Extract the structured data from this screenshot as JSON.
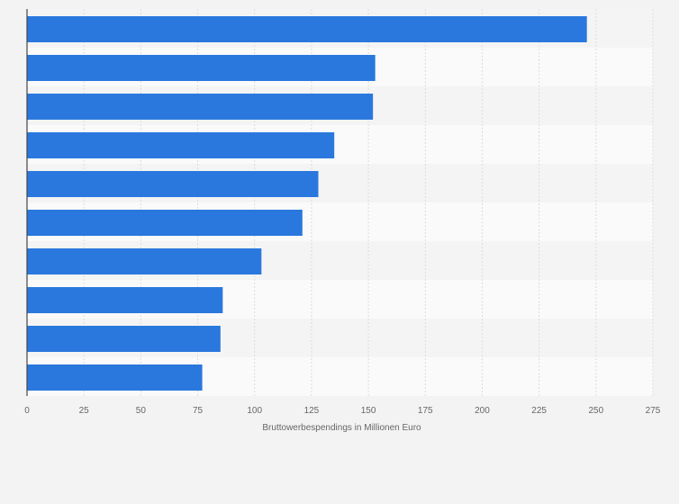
{
  "colors": {
    "bar": "#2a78de",
    "background": "#f3f3f3",
    "band_light": "#fafafa",
    "band_dark": "#f4f4f4",
    "grid": "#dcdcdc",
    "axis": "#444444",
    "text": "#666666"
  },
  "chart_data": {
    "type": "bar",
    "orientation": "horizontal",
    "categories": [
      "",
      "",
      "",
      "",
      "",
      "",
      "",
      "",
      "",
      ""
    ],
    "values": [
      246,
      153,
      152,
      135,
      128,
      121,
      103,
      86,
      85,
      77
    ],
    "title": "",
    "xlabel": "Bruttowerbespendings in Millionen Euro",
    "ylabel": "",
    "xlim": [
      0,
      275
    ],
    "xticks": [
      "0",
      "25",
      "50",
      "75",
      "100",
      "125",
      "150",
      "175",
      "200",
      "225",
      "250",
      "275"
    ],
    "grid": true,
    "legend": "none"
  }
}
